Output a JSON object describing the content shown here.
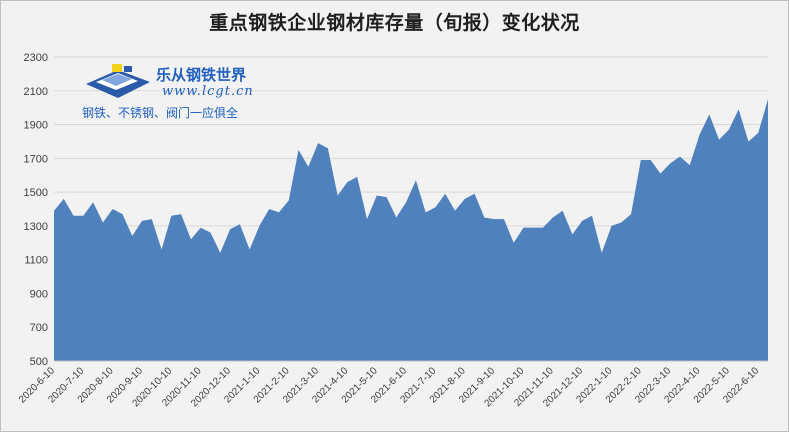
{
  "logo": {
    "name": "乐从钢铁世界",
    "url": "www.lcgt.cn",
    "slogan": "钢铁、不锈钢、阀门一应俱全"
  },
  "colors": {
    "area_fill": "#4f81bd",
    "background": "#f2f2f2",
    "grid": "#d9d9d9"
  },
  "chart_data": {
    "type": "area",
    "title": "重点钢铁企业钢材库存量（旬报）变化状况",
    "xlabel": "",
    "ylabel": "",
    "ylim": [
      500,
      2300
    ],
    "yticks": [
      500,
      700,
      900,
      1100,
      1300,
      1500,
      1700,
      1900,
      2100,
      2300
    ],
    "grid": true,
    "x_tick_labels": [
      "2020-6-10",
      "2020-7-10",
      "2020-8-10",
      "2020-9-10",
      "2020-10-10",
      "2020-11-10",
      "2020-12-10",
      "2021-1-10",
      "2021-2-10",
      "2021-3-10",
      "2021-4-10",
      "2021-5-10",
      "2021-6-10",
      "2021-7-10",
      "2021-8-10",
      "2021-9-10",
      "2021-10-10",
      "2021-11-10",
      "2021-12-10",
      "2022-1-10",
      "2022-2-10",
      "2022-3-10",
      "2022-4-10",
      "2022-5-10",
      "2022-6-10"
    ],
    "values": [
      1390,
      1460,
      1360,
      1360,
      1440,
      1320,
      1400,
      1370,
      1240,
      1330,
      1340,
      1160,
      1360,
      1370,
      1220,
      1290,
      1260,
      1140,
      1280,
      1310,
      1160,
      1300,
      1400,
      1380,
      1450,
      1750,
      1650,
      1790,
      1760,
      1480,
      1560,
      1590,
      1340,
      1480,
      1470,
      1350,
      1440,
      1570,
      1380,
      1410,
      1490,
      1390,
      1460,
      1490,
      1350,
      1340,
      1340,
      1200,
      1290,
      1290,
      1290,
      1350,
      1390,
      1250,
      1330,
      1360,
      1140,
      1300,
      1320,
      1370,
      1690,
      1690,
      1610,
      1670,
      1710,
      1660,
      1840,
      1960,
      1810,
      1870,
      1990,
      1800,
      1850,
      2050
    ]
  }
}
